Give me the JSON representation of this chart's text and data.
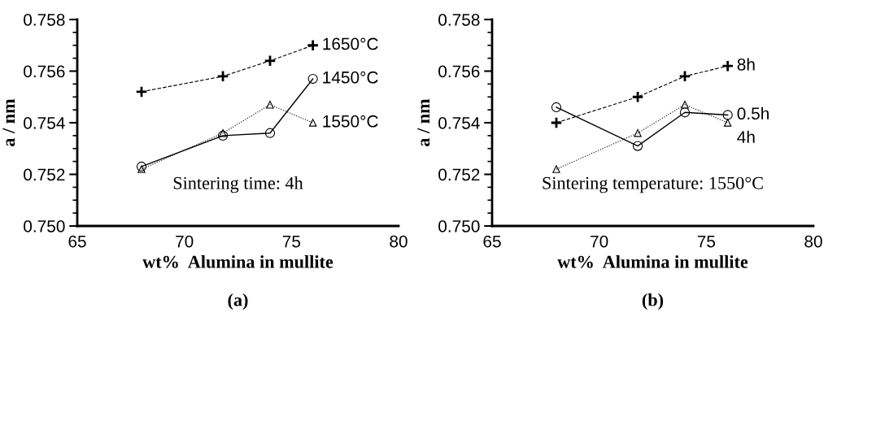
{
  "chart_data": [
    {
      "type": "line",
      "title": "(a)",
      "xlabel": "wt%  Alumina in mullite",
      "ylabel": "a / nm",
      "xlim": [
        65,
        80
      ],
      "xticks": [
        65,
        70,
        75,
        80
      ],
      "ylim": [
        0.75,
        0.758
      ],
      "yticks": [
        {
          "value": 0.75,
          "label": "0.750"
        },
        {
          "value": 0.752,
          "label": "0.752"
        },
        {
          "value": 0.754,
          "label": "0.754"
        },
        {
          "value": 0.756,
          "label": "0.756"
        },
        {
          "value": 0.758,
          "label": "0.758"
        }
      ],
      "grid": false,
      "legend": false,
      "annotations": [
        "Sintering time: 4h"
      ],
      "series": [
        {
          "name": "1650°C",
          "color": "#000000",
          "marker": "cross",
          "line_style": "dashed",
          "x": [
            68,
            71.8,
            74,
            76
          ],
          "values": [
            0.7552,
            0.7558,
            0.7564,
            0.757
          ]
        },
        {
          "name": "1450°C",
          "color": "#000000",
          "marker": "circle",
          "line_style": "solid",
          "x": [
            68,
            71.8,
            74,
            76
          ],
          "values": [
            0.7523,
            0.7535,
            0.7536,
            0.7557
          ]
        },
        {
          "name": "1550°C",
          "color": "#000000",
          "marker": "triangle",
          "line_style": "dotted",
          "x": [
            68,
            71.8,
            74,
            76
          ],
          "values": [
            0.7522,
            0.7536,
            0.7547,
            0.754
          ]
        }
      ]
    },
    {
      "type": "line",
      "title": "(b)",
      "xlabel": "wt%  Alumina in mullite",
      "ylabel": "a / nm",
      "xlim": [
        65,
        80
      ],
      "xticks": [
        65,
        70,
        75,
        80
      ],
      "ylim": [
        0.75,
        0.758
      ],
      "yticks": [
        {
          "value": 0.75,
          "label": "0.750"
        },
        {
          "value": 0.752,
          "label": "0.752"
        },
        {
          "value": 0.754,
          "label": "0.754"
        },
        {
          "value": 0.756,
          "label": "0.756"
        },
        {
          "value": 0.758,
          "label": "0.758"
        }
      ],
      "grid": false,
      "legend": false,
      "annotations": [
        "Sintering temperature: 1550°C"
      ],
      "series": [
        {
          "name": "8h",
          "color": "#000000",
          "marker": "cross",
          "line_style": "dashed",
          "x": [
            68,
            71.8,
            74,
            76
          ],
          "values": [
            0.754,
            0.755,
            0.7558,
            0.7562
          ]
        },
        {
          "name": "0.5h",
          "color": "#000000",
          "marker": "circle",
          "line_style": "solid",
          "x": [
            68,
            71.8,
            74,
            76
          ],
          "values": [
            0.7546,
            0.7531,
            0.7544,
            0.7543
          ]
        },
        {
          "name": "4h",
          "color": "#000000",
          "marker": "triangle",
          "line_style": "dotted",
          "x": [
            68,
            71.8,
            74,
            76
          ],
          "values": [
            0.7522,
            0.7536,
            0.7547,
            0.754
          ]
        }
      ]
    }
  ]
}
